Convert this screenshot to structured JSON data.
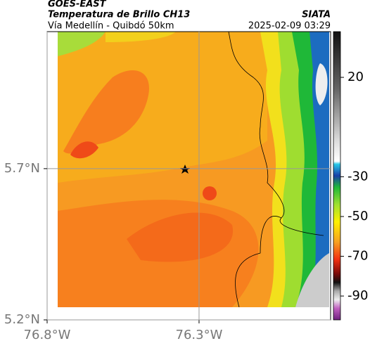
{
  "header": {
    "title": "GOES-EAST",
    "subtitle": "Temperatura de Brillo CH13",
    "route": "Vía Medellín - Quibdó 50km",
    "source": "SIATA",
    "timestamp": "2025-02-09 03:29"
  },
  "map": {
    "xlim": [
      -76.8,
      -75.867
    ],
    "ylim": [
      5.2,
      6.153
    ],
    "xticks": [
      {
        "value": -76.8,
        "label": "76.8°W"
      },
      {
        "value": -76.3,
        "label": "76.3°W"
      }
    ],
    "yticks": [
      {
        "value": 5.2,
        "label": "5.2°N"
      },
      {
        "value": 5.7,
        "label": "5.7°N"
      }
    ],
    "grid": true,
    "colorbar": {
      "lim": [
        -102,
        43
      ],
      "ticks": [
        20,
        -30,
        -50,
        -70,
        -90
      ]
    }
  }
}
